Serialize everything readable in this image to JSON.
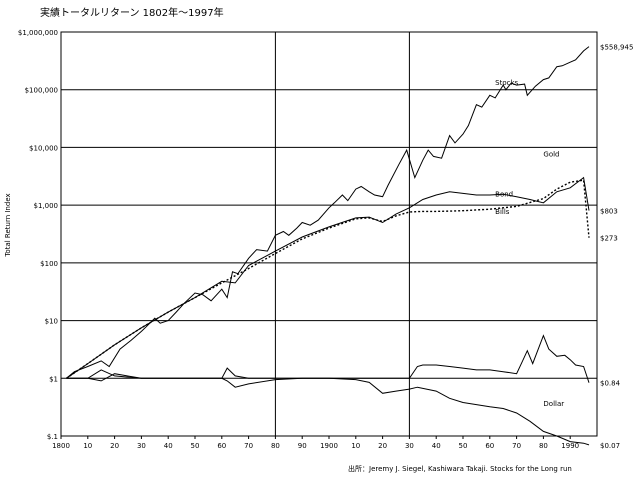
{
  "chart_data": {
    "type": "line",
    "title": "実績トータルリターン 1802年～1997年",
    "ylabel": "Total Return Index",
    "source": "出所：Jeremy J. Siegel, Kashiwara Takaji. Stocks for the Long run",
    "y_scale": "log",
    "xlim": [
      1800,
      2000
    ],
    "ylim": [
      0.1,
      1000000
    ],
    "grid": true,
    "x_ticks": [
      1800,
      1810,
      1820,
      1830,
      1840,
      1850,
      1860,
      1870,
      1880,
      1890,
      1900,
      1910,
      1920,
      1930,
      1940,
      1950,
      1960,
      1970,
      1980,
      1990
    ],
    "x_tick_labels": [
      "1800",
      "10",
      "20",
      "30",
      "40",
      "50",
      "60",
      "70",
      "80",
      "90",
      "1900",
      "10",
      "20",
      "30",
      "40",
      "50",
      "60",
      "70",
      "80",
      "1990"
    ],
    "y_ticks": [
      0.1,
      1,
      10,
      100,
      1000,
      10000,
      100000,
      1000000
    ],
    "y_tick_labels": [
      "$.1",
      "$1",
      "$10",
      "$100",
      "$1,000",
      "$10,000",
      "$100,000",
      "$1,000,000"
    ],
    "series": [
      {
        "name": "Stocks",
        "end_label": "$558,945",
        "points": [
          [
            1802,
            1
          ],
          [
            1805,
            1.3
          ],
          [
            1810,
            1.6
          ],
          [
            1815,
            2
          ],
          [
            1818,
            1.6
          ],
          [
            1822,
            3.2
          ],
          [
            1826,
            4.5
          ],
          [
            1830,
            6.5
          ],
          [
            1832,
            8
          ],
          [
            1835,
            11
          ],
          [
            1837,
            9
          ],
          [
            1840,
            10
          ],
          [
            1843,
            14
          ],
          [
            1846,
            20
          ],
          [
            1850,
            30
          ],
          [
            1853,
            28
          ],
          [
            1856,
            22
          ],
          [
            1860,
            35
          ],
          [
            1862,
            25
          ],
          [
            1864,
            70
          ],
          [
            1866,
            65
          ],
          [
            1870,
            120
          ],
          [
            1873,
            170
          ],
          [
            1877,
            160
          ],
          [
            1880,
            300
          ],
          [
            1883,
            350
          ],
          [
            1885,
            300
          ],
          [
            1888,
            400
          ],
          [
            1890,
            500
          ],
          [
            1893,
            450
          ],
          [
            1896,
            550
          ],
          [
            1900,
            900
          ],
          [
            1902,
            1100
          ],
          [
            1905,
            1500
          ],
          [
            1907,
            1200
          ],
          [
            1910,
            1900
          ],
          [
            1912,
            2100
          ],
          [
            1915,
            1700
          ],
          [
            1917,
            1500
          ],
          [
            1920,
            1400
          ],
          [
            1922,
            2200
          ],
          [
            1926,
            5000
          ],
          [
            1929,
            9000
          ],
          [
            1932,
            3000
          ],
          [
            1935,
            6000
          ],
          [
            1937,
            9000
          ],
          [
            1939,
            7000
          ],
          [
            1942,
            6500
          ],
          [
            1945,
            16000
          ],
          [
            1947,
            12000
          ],
          [
            1950,
            17000
          ],
          [
            1952,
            24000
          ],
          [
            1955,
            55000
          ],
          [
            1957,
            50000
          ],
          [
            1960,
            80000
          ],
          [
            1962,
            72000
          ],
          [
            1965,
            120000
          ],
          [
            1966,
            100000
          ],
          [
            1968,
            130000
          ],
          [
            1970,
            120000
          ],
          [
            1973,
            125000
          ],
          [
            1974,
            80000
          ],
          [
            1977,
            115000
          ],
          [
            1980,
            150000
          ],
          [
            1982,
            160000
          ],
          [
            1985,
            250000
          ],
          [
            1987,
            260000
          ],
          [
            1990,
            300000
          ],
          [
            1992,
            330000
          ],
          [
            1995,
            470000
          ],
          [
            1997,
            558945
          ]
        ]
      },
      {
        "name": "Bond",
        "end_label": "$803",
        "points": [
          [
            1802,
            1
          ],
          [
            1810,
            1.8
          ],
          [
            1820,
            3.8
          ],
          [
            1830,
            7.5
          ],
          [
            1840,
            14
          ],
          [
            1850,
            25
          ],
          [
            1860,
            48
          ],
          [
            1865,
            45
          ],
          [
            1870,
            90
          ],
          [
            1880,
            160
          ],
          [
            1890,
            280
          ],
          [
            1900,
            420
          ],
          [
            1910,
            600
          ],
          [
            1915,
            620
          ],
          [
            1920,
            500
          ],
          [
            1925,
            700
          ],
          [
            1930,
            900
          ],
          [
            1935,
            1250
          ],
          [
            1940,
            1500
          ],
          [
            1945,
            1700
          ],
          [
            1950,
            1600
          ],
          [
            1955,
            1500
          ],
          [
            1960,
            1500
          ],
          [
            1965,
            1550
          ],
          [
            1970,
            1400
          ],
          [
            1975,
            1250
          ],
          [
            1980,
            1100
          ],
          [
            1985,
            1700
          ],
          [
            1990,
            2000
          ],
          [
            1995,
            3000
          ],
          [
            1997,
            803
          ]
        ]
      },
      {
        "name": "Bills",
        "end_label": "$273",
        "points": [
          [
            1802,
            1
          ],
          [
            1810,
            1.8
          ],
          [
            1820,
            3.8
          ],
          [
            1830,
            7.5
          ],
          [
            1840,
            14
          ],
          [
            1850,
            25
          ],
          [
            1860,
            45
          ],
          [
            1870,
            80
          ],
          [
            1880,
            145
          ],
          [
            1890,
            260
          ],
          [
            1900,
            400
          ],
          [
            1910,
            580
          ],
          [
            1915,
            600
          ],
          [
            1920,
            520
          ],
          [
            1925,
            650
          ],
          [
            1930,
            760
          ],
          [
            1935,
            780
          ],
          [
            1940,
            780
          ],
          [
            1945,
            790
          ],
          [
            1950,
            800
          ],
          [
            1960,
            850
          ],
          [
            1970,
            950
          ],
          [
            1980,
            1300
          ],
          [
            1985,
            1900
          ],
          [
            1990,
            2500
          ],
          [
            1995,
            2700
          ],
          [
            1997,
            273
          ]
        ]
      },
      {
        "name": "Gold",
        "end_label": "$0.84",
        "points": [
          [
            1802,
            1
          ],
          [
            1810,
            1
          ],
          [
            1815,
            1.4
          ],
          [
            1820,
            1.1
          ],
          [
            1830,
            1
          ],
          [
            1840,
            1
          ],
          [
            1850,
            1
          ],
          [
            1860,
            1
          ],
          [
            1862,
            1.5
          ],
          [
            1865,
            1.1
          ],
          [
            1870,
            1
          ],
          [
            1880,
            1
          ],
          [
            1900,
            1
          ],
          [
            1920,
            1
          ],
          [
            1930,
            1
          ],
          [
            1933,
            1.6
          ],
          [
            1935,
            1.7
          ],
          [
            1940,
            1.7
          ],
          [
            1945,
            1.6
          ],
          [
            1950,
            1.5
          ],
          [
            1955,
            1.4
          ],
          [
            1960,
            1.4
          ],
          [
            1965,
            1.3
          ],
          [
            1970,
            1.2
          ],
          [
            1972,
            1.9
          ],
          [
            1974,
            3
          ],
          [
            1976,
            1.8
          ],
          [
            1980,
            5.5
          ],
          [
            1982,
            3.2
          ],
          [
            1985,
            2.4
          ],
          [
            1988,
            2.5
          ],
          [
            1990,
            2.1
          ],
          [
            1992,
            1.7
          ],
          [
            1995,
            1.6
          ],
          [
            1997,
            0.84
          ]
        ]
      },
      {
        "name": "Dollar",
        "end_label": "$0.07",
        "points": [
          [
            1802,
            1
          ],
          [
            1810,
            1
          ],
          [
            1815,
            0.9
          ],
          [
            1820,
            1.2
          ],
          [
            1830,
            1
          ],
          [
            1840,
            1
          ],
          [
            1850,
            1
          ],
          [
            1860,
            1
          ],
          [
            1862,
            0.9
          ],
          [
            1865,
            0.7
          ],
          [
            1870,
            0.8
          ],
          [
            1880,
            0.95
          ],
          [
            1890,
            1
          ],
          [
            1900,
            1
          ],
          [
            1910,
            0.95
          ],
          [
            1915,
            0.85
          ],
          [
            1920,
            0.55
          ],
          [
            1925,
            0.6
          ],
          [
            1930,
            0.65
          ],
          [
            1933,
            0.7
          ],
          [
            1940,
            0.6
          ],
          [
            1945,
            0.45
          ],
          [
            1950,
            0.38
          ],
          [
            1955,
            0.35
          ],
          [
            1960,
            0.32
          ],
          [
            1965,
            0.3
          ],
          [
            1970,
            0.25
          ],
          [
            1975,
            0.18
          ],
          [
            1980,
            0.12
          ],
          [
            1985,
            0.1
          ],
          [
            1990,
            0.08
          ],
          [
            1995,
            0.075
          ],
          [
            1997,
            0.07
          ]
        ]
      }
    ]
  }
}
